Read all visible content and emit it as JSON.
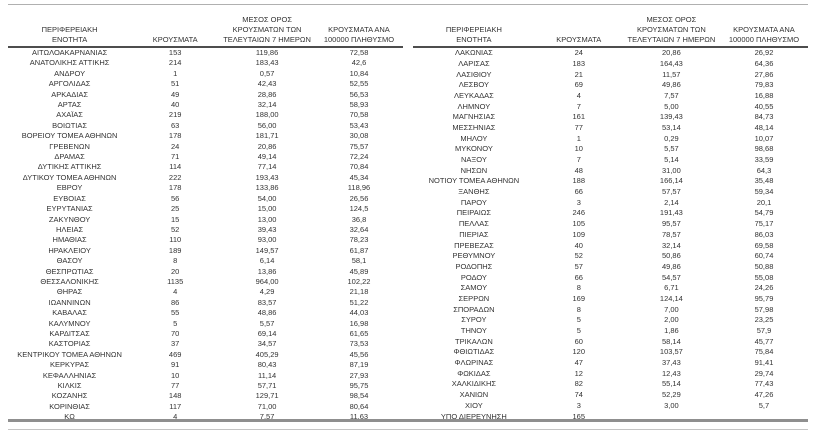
{
  "colors": {
    "background": "#ffffff",
    "text": "#333333",
    "header_rule": "#4d4d4d",
    "top_rule": "#b0b0b0",
    "bottom_rule_thick": "#8f8f8f",
    "bottom_rule_thin": "#c4c4c4"
  },
  "table_headers": {
    "region": "ΠΕΡΙΦΕΡΕΙΑΚΗ ΕΝΟΤΗΤΑ",
    "cases": "ΚΡΟΥΣΜΑΤΑ",
    "avg7": "ΜΕΣΟΣ ΟΡΟΣ ΚΡΟΥΣΜΑΤΩΝ ΤΩΝ ΤΕΛΕΥΤΑΙΩΝ 7 ΗΜΕΡΩΝ",
    "per100k": "ΚΡΟΥΣΜΑΤΑ ΑΝΑ 100000 ΠΛΗΘΥΣΜΟ"
  },
  "left_table": {
    "rows": [
      [
        "ΑΙΤΩΛΟΑΚΑΡΝΑΝΙΑΣ",
        "153",
        "119,86",
        "72,58"
      ],
      [
        "ΑΝΑΤΟΛΙΚΗΣ ΑΤΤΙΚΗΣ",
        "214",
        "183,43",
        "42,6"
      ],
      [
        "ΑΝΔΡΟΥ",
        "1",
        "0,57",
        "10,84"
      ],
      [
        "ΑΡΓΟΛΙΔΑΣ",
        "51",
        "42,43",
        "52,55"
      ],
      [
        "ΑΡΚΑΔΙΑΣ",
        "49",
        "28,86",
        "56,53"
      ],
      [
        "ΑΡΤΑΣ",
        "40",
        "32,14",
        "58,93"
      ],
      [
        "ΑΧΑΪΑΣ",
        "219",
        "188,00",
        "70,58"
      ],
      [
        "ΒΟΙΩΤΙΑΣ",
        "63",
        "56,00",
        "53,43"
      ],
      [
        "ΒΟΡΕΙΟΥ ΤΟΜΕΑ ΑΘΗΝΩΝ",
        "178",
        "181,71",
        "30,08"
      ],
      [
        "ΓΡΕΒΕΝΩΝ",
        "24",
        "20,86",
        "75,57"
      ],
      [
        "ΔΡΑΜΑΣ",
        "71",
        "49,14",
        "72,24"
      ],
      [
        "ΔΥΤΙΚΗΣ ΑΤΤΙΚΗΣ",
        "114",
        "77,14",
        "70,84"
      ],
      [
        "ΔΥΤΙΚΟΥ ΤΟΜΕΑ ΑΘΗΝΩΝ",
        "222",
        "193,43",
        "45,34"
      ],
      [
        "ΕΒΡΟΥ",
        "178",
        "133,86",
        "118,96"
      ],
      [
        "ΕΥΒΟΙΑΣ",
        "56",
        "54,00",
        "26,56"
      ],
      [
        "ΕΥΡΥΤΑΝΙΑΣ",
        "25",
        "15,00",
        "124,5"
      ],
      [
        "ΖΑΚΥΝΘΟΥ",
        "15",
        "13,00",
        "36,8"
      ],
      [
        "ΗΛΕΙΑΣ",
        "52",
        "39,43",
        "32,64"
      ],
      [
        "ΗΜΑΘΙΑΣ",
        "110",
        "93,00",
        "78,23"
      ],
      [
        "ΗΡΑΚΛΕΙΟΥ",
        "189",
        "149,57",
        "61,87"
      ],
      [
        "ΘΑΣΟΥ",
        "8",
        "6,14",
        "58,1"
      ],
      [
        "ΘΕΣΠΡΩΤΙΑΣ",
        "20",
        "13,86",
        "45,89"
      ],
      [
        "ΘΕΣΣΑΛΟΝΙΚΗΣ",
        "1135",
        "964,00",
        "102,22"
      ],
      [
        "ΘΗΡΑΣ",
        "4",
        "4,29",
        "21,18"
      ],
      [
        "ΙΩΑΝΝΙΝΩΝ",
        "86",
        "83,57",
        "51,22"
      ],
      [
        "ΚΑΒΑΛΑΣ",
        "55",
        "48,86",
        "44,03"
      ],
      [
        "ΚΑΛΥΜΝΟΥ",
        "5",
        "5,57",
        "16,98"
      ],
      [
        "ΚΑΡΔΙΤΣΑΣ",
        "70",
        "69,14",
        "61,65"
      ],
      [
        "ΚΑΣΤΟΡΙΑΣ",
        "37",
        "34,57",
        "73,53"
      ],
      [
        "ΚΕΝΤΡΙΚΟΥ ΤΟΜΕΑ ΑΘΗΝΩΝ",
        "469",
        "405,29",
        "45,56"
      ],
      [
        "ΚΕΡΚΥΡΑΣ",
        "91",
        "80,43",
        "87,19"
      ],
      [
        "ΚΕΦΑΛΛΗΝΙΑΣ",
        "10",
        "11,14",
        "27,93"
      ],
      [
        "ΚΙΛΚΙΣ",
        "77",
        "57,71",
        "95,75"
      ],
      [
        "ΚΟΖΑΝΗΣ",
        "148",
        "129,71",
        "98,54"
      ],
      [
        "ΚΟΡΙΝΘΙΑΣ",
        "117",
        "71,00",
        "80,64"
      ],
      [
        "ΚΩ",
        "4",
        "7,57",
        "11,63"
      ]
    ]
  },
  "right_table": {
    "rows": [
      [
        "ΛΑΚΩΝΙΑΣ",
        "24",
        "20,86",
        "26,92"
      ],
      [
        "ΛΑΡΙΣΑΣ",
        "183",
        "164,43",
        "64,36"
      ],
      [
        "ΛΑΣΙΘΙΟΥ",
        "21",
        "11,57",
        "27,86"
      ],
      [
        "ΛΕΣΒΟΥ",
        "69",
        "49,86",
        "79,83"
      ],
      [
        "ΛΕΥΚΑΔΑΣ",
        "4",
        "7,57",
        "16,88"
      ],
      [
        "ΛΗΜΝΟΥ",
        "7",
        "5,00",
        "40,55"
      ],
      [
        "ΜΑΓΝΗΣΙΑΣ",
        "161",
        "139,43",
        "84,73"
      ],
      [
        "ΜΕΣΣΗΝΙΑΣ",
        "77",
        "53,14",
        "48,14"
      ],
      [
        "ΜΗΛΟΥ",
        "1",
        "0,29",
        "10,07"
      ],
      [
        "ΜΥΚΟΝΟΥ",
        "10",
        "5,57",
        "98,68"
      ],
      [
        "ΝΑΞΟΥ",
        "7",
        "5,14",
        "33,59"
      ],
      [
        "ΝΗΣΩΝ",
        "48",
        "31,00",
        "64,3"
      ],
      [
        "ΝΟΤΙΟΥ ΤΟΜΕΑ ΑΘΗΝΩΝ",
        "188",
        "166,14",
        "35,48"
      ],
      [
        "ΞΑΝΘΗΣ",
        "66",
        "57,57",
        "59,34"
      ],
      [
        "ΠΑΡΟΥ",
        "3",
        "2,14",
        "20,1"
      ],
      [
        "ΠΕΙΡΑΙΩΣ",
        "246",
        "191,43",
        "54,79"
      ],
      [
        "ΠΕΛΛΑΣ",
        "105",
        "95,57",
        "75,17"
      ],
      [
        "ΠΙΕΡΙΑΣ",
        "109",
        "78,57",
        "86,03"
      ],
      [
        "ΠΡΕΒΕΖΑΣ",
        "40",
        "32,14",
        "69,58"
      ],
      [
        "ΡΕΘΥΜΝΟΥ",
        "52",
        "50,86",
        "60,74"
      ],
      [
        "ΡΟΔΟΠΗΣ",
        "57",
        "49,86",
        "50,88"
      ],
      [
        "ΡΟΔΟΥ",
        "66",
        "54,57",
        "55,08"
      ],
      [
        "ΣΑΜΟΥ",
        "8",
        "6,71",
        "24,26"
      ],
      [
        "ΣΕΡΡΩΝ",
        "169",
        "124,14",
        "95,79"
      ],
      [
        "ΣΠΟΡΑΔΩΝ",
        "8",
        "7,00",
        "57,98"
      ],
      [
        "ΣΥΡΟΥ",
        "5",
        "2,00",
        "23,25"
      ],
      [
        "ΤΗΝΟΥ",
        "5",
        "1,86",
        "57,9"
      ],
      [
        "ΤΡΙΚΑΛΩΝ",
        "60",
        "58,14",
        "45,77"
      ],
      [
        "ΦΘΙΩΤΙΔΑΣ",
        "120",
        "103,57",
        "75,84"
      ],
      [
        "ΦΛΩΡΙΝΑΣ",
        "47",
        "37,43",
        "91,41"
      ],
      [
        "ΦΩΚΙΔΑΣ",
        "12",
        "12,43",
        "29,74"
      ],
      [
        "ΧΑΛΚΙΔΙΚΗΣ",
        "82",
        "55,14",
        "77,43"
      ],
      [
        "ΧΑΝΙΩΝ",
        "74",
        "52,29",
        "47,26"
      ],
      [
        "ΧΙΟΥ",
        "3",
        "3,00",
        "5,7"
      ],
      [
        "ΥΠΟ ΔΙΕΡΕΥΝΗΣΗ",
        "165",
        "",
        ""
      ]
    ]
  }
}
